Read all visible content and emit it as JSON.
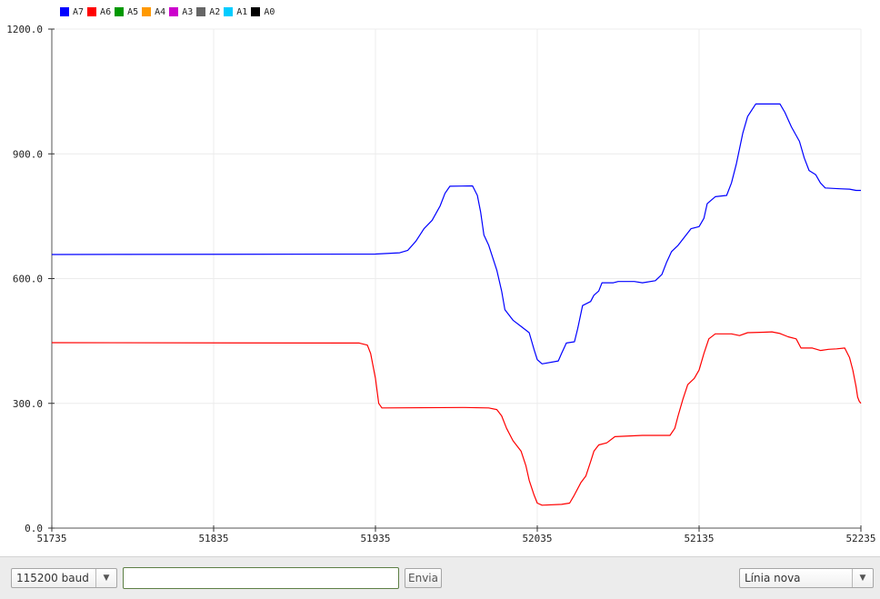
{
  "chart_data": {
    "type": "line",
    "xlim": [
      51735,
      52235
    ],
    "ylim": [
      0,
      1200
    ],
    "x_ticks": [
      "51735",
      "51835",
      "51935",
      "52035",
      "52135",
      "52235"
    ],
    "y_ticks": [
      "0.0",
      "300.0",
      "600.0",
      "900.0",
      "1200.0"
    ],
    "grid": true,
    "legend_position": "top-left",
    "legend": [
      {
        "name": "A7",
        "color": "#0000ff"
      },
      {
        "name": "A6",
        "color": "#ff0000"
      },
      {
        "name": "A5",
        "color": "#009900"
      },
      {
        "name": "A4",
        "color": "#ff9900"
      },
      {
        "name": "A3",
        "color": "#cc00cc"
      },
      {
        "name": "A2",
        "color": "#666666"
      },
      {
        "name": "A1",
        "color": "#00ccff"
      },
      {
        "name": "A0",
        "color": "#000000"
      }
    ],
    "series": [
      {
        "name": "A7",
        "color": "#0000ff",
        "points": [
          [
            51735,
            658
          ],
          [
            51935,
            659
          ],
          [
            51950,
            662
          ],
          [
            51955,
            668
          ],
          [
            51960,
            690
          ],
          [
            51965,
            720
          ],
          [
            51970,
            740
          ],
          [
            51975,
            775
          ],
          [
            51978,
            805
          ],
          [
            51981,
            822
          ],
          [
            51995,
            823
          ],
          [
            51998,
            800
          ],
          [
            52000,
            760
          ],
          [
            52002,
            705
          ],
          [
            52005,
            680
          ],
          [
            52010,
            620
          ],
          [
            52013,
            570
          ],
          [
            52015,
            525
          ],
          [
            52020,
            500
          ],
          [
            52025,
            485
          ],
          [
            52030,
            470
          ],
          [
            52033,
            430
          ],
          [
            52035,
            405
          ],
          [
            52038,
            395
          ],
          [
            52048,
            402
          ],
          [
            52050,
            420
          ],
          [
            52053,
            445
          ],
          [
            52058,
            448
          ],
          [
            52060,
            480
          ],
          [
            52063,
            535
          ],
          [
            52068,
            545
          ],
          [
            52070,
            560
          ],
          [
            52073,
            570
          ],
          [
            52075,
            590
          ],
          [
            52082,
            590
          ],
          [
            52085,
            593
          ],
          [
            52095,
            593
          ],
          [
            52100,
            590
          ],
          [
            52108,
            595
          ],
          [
            52112,
            610
          ],
          [
            52115,
            640
          ],
          [
            52118,
            665
          ],
          [
            52122,
            680
          ],
          [
            52126,
            700
          ],
          [
            52130,
            720
          ],
          [
            52135,
            725
          ],
          [
            52138,
            745
          ],
          [
            52140,
            780
          ],
          [
            52145,
            797
          ],
          [
            52152,
            800
          ],
          [
            52155,
            830
          ],
          [
            52158,
            875
          ],
          [
            52162,
            950
          ],
          [
            52165,
            990
          ],
          [
            52170,
            1020
          ],
          [
            52185,
            1020
          ],
          [
            52188,
            1000
          ],
          [
            52192,
            965
          ],
          [
            52197,
            930
          ],
          [
            52200,
            890
          ],
          [
            52203,
            860
          ],
          [
            52207,
            850
          ],
          [
            52210,
            830
          ],
          [
            52213,
            818
          ],
          [
            52222,
            816
          ],
          [
            52228,
            815
          ],
          [
            52232,
            812
          ],
          [
            52235,
            812
          ]
        ]
      },
      {
        "name": "A6",
        "color": "#ff0000",
        "points": [
          [
            51735,
            446
          ],
          [
            51925,
            445
          ],
          [
            51930,
            440
          ],
          [
            51932,
            420
          ],
          [
            51935,
            360
          ],
          [
            51937,
            300
          ],
          [
            51939,
            289
          ],
          [
            51990,
            290
          ],
          [
            52005,
            289
          ],
          [
            52010,
            285
          ],
          [
            52013,
            270
          ],
          [
            52016,
            240
          ],
          [
            52020,
            210
          ],
          [
            52025,
            185
          ],
          [
            52028,
            150
          ],
          [
            52030,
            115
          ],
          [
            52033,
            80
          ],
          [
            52035,
            60
          ],
          [
            52038,
            55
          ],
          [
            52050,
            57
          ],
          [
            52055,
            60
          ],
          [
            52058,
            80
          ],
          [
            52062,
            110
          ],
          [
            52065,
            125
          ],
          [
            52068,
            160
          ],
          [
            52070,
            185
          ],
          [
            52073,
            200
          ],
          [
            52078,
            205
          ],
          [
            52083,
            220
          ],
          [
            52100,
            223
          ],
          [
            52117,
            223
          ],
          [
            52120,
            240
          ],
          [
            52122,
            270
          ],
          [
            52125,
            310
          ],
          [
            52128,
            345
          ],
          [
            52132,
            360
          ],
          [
            52135,
            380
          ],
          [
            52138,
            420
          ],
          [
            52141,
            455
          ],
          [
            52145,
            467
          ],
          [
            52155,
            467
          ],
          [
            52160,
            463
          ],
          [
            52165,
            470
          ],
          [
            52175,
            471
          ],
          [
            52180,
            472
          ],
          [
            52185,
            468
          ],
          [
            52190,
            460
          ],
          [
            52195,
            455
          ],
          [
            52198,
            433
          ],
          [
            52205,
            433
          ],
          [
            52210,
            427
          ],
          [
            52215,
            430
          ],
          [
            52220,
            431
          ],
          [
            52225,
            433
          ],
          [
            52228,
            410
          ],
          [
            52230,
            380
          ],
          [
            52232,
            340
          ],
          [
            52233,
            315
          ],
          [
            52234,
            305
          ],
          [
            52235,
            300
          ]
        ]
      }
    ]
  },
  "bottom_bar": {
    "baud_label": "115200 baud",
    "send_input_value": "",
    "send_button_label": "Envia",
    "line_ending_label": "Línia nova"
  }
}
